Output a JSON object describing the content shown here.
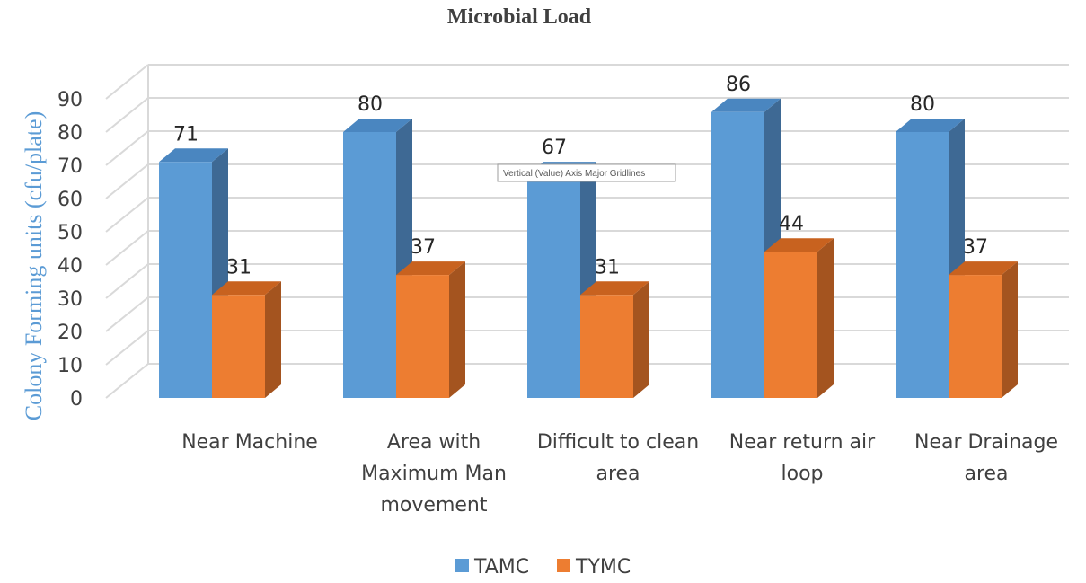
{
  "chart_data": {
    "type": "bar",
    "title": "Microbial Load",
    "ylabel": "Colony Forming units (cfu/plate)",
    "xlabel": "",
    "ylim": [
      0,
      90
    ],
    "yticks": [
      "0",
      "10",
      "20",
      "30",
      "40",
      "50",
      "60",
      "70",
      "80",
      "90"
    ],
    "grid": true,
    "style": "3d-clustered-column",
    "legend_position": "bottom",
    "categories": [
      [
        "Near Machine"
      ],
      [
        "Area with",
        "Maximum Man",
        "movement"
      ],
      [
        "Difficult to clean",
        "area"
      ],
      [
        "Near return air",
        "loop"
      ],
      [
        "Near Drainage",
        "area"
      ]
    ],
    "series": [
      {
        "name": "TAMC",
        "values": [
          71,
          80,
          67,
          86,
          80
        ],
        "color": "#5b9bd5",
        "side_color": "#3e6994",
        "top_color": "#4a86c0"
      },
      {
        "name": "TYMC",
        "values": [
          31,
          37,
          31,
          44,
          37
        ],
        "color": "#ed7d31",
        "side_color": "#a4541f",
        "top_color": "#c8621f"
      }
    ]
  },
  "tooltip": {
    "text": "Vertical (Value) Axis Major Gridlines"
  }
}
